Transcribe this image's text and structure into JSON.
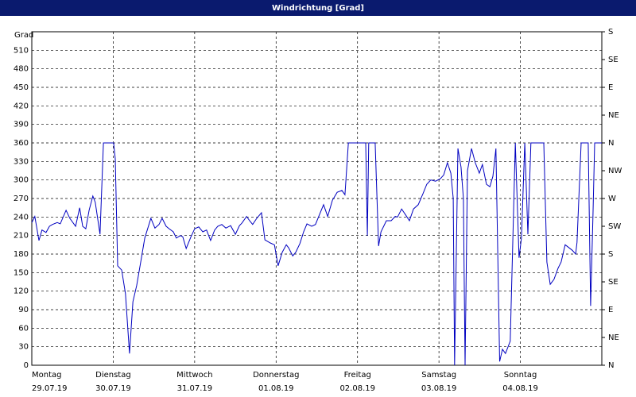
{
  "chart_data": {
    "type": "line",
    "title": "Windrichtung [Grad]",
    "ylabel": "Grad",
    "color": "#0000c0",
    "x": [
      0,
      0.9,
      2.1,
      3.0,
      4.2,
      5.2,
      6.1,
      7.5,
      8.4,
      10.1,
      11.2,
      12.9,
      14.1,
      15.0,
      15.9,
      16.9,
      18.0,
      18.7,
      20.1,
      21.1,
      24.1,
      24.6,
      25.3,
      26.5,
      27.6,
      28.8,
      29.8,
      30.9,
      32.1,
      33.3,
      35.1,
      36.3,
      37.5,
      38.4,
      39.6,
      40.5,
      41.7,
      42.6,
      43.8,
      44.5,
      45.5,
      46.9,
      48.0,
      49.2,
      50.4,
      51.5,
      52.7,
      53.9,
      54.8,
      56.0,
      57.2,
      58.6,
      60.0,
      61.2,
      61.9,
      63.3,
      64.2,
      65.1,
      66.3,
      67.7,
      68.7,
      70.3,
      71.5,
      72.6,
      73.8,
      75.0,
      75.7,
      76.9,
      77.8,
      79.0,
      80.1,
      81.1,
      82.5,
      83.6,
      84.8,
      86.0,
      87.2,
      88.6,
      90.0,
      91.4,
      92.3,
      93.3,
      96.1,
      98.4,
      98.9,
      99.3,
      100.3,
      101.2,
      102.2,
      102.9,
      104.5,
      105.9,
      107.1,
      107.8,
      109.0,
      110.1,
      111.3,
      112.5,
      113.9,
      115.3,
      116.4,
      117.6,
      119.0,
      120.4,
      121.4,
      122.5,
      123.5,
      124.2,
      124.6,
      125.6,
      126.5,
      127.2,
      127.7,
      128.4,
      129.6,
      130.7,
      131.9,
      132.8,
      134.0,
      135.0,
      135.9,
      136.8,
      137.9,
      138.7,
      139.6,
      141.0,
      142.5,
      143.6,
      144.3,
      145.3,
      146.2,
      147.1,
      150.9,
      151.8,
      152.8,
      153.9,
      155.1,
      156.0,
      157.2,
      158.4,
      159.3,
      160.3,
      160.7,
      161.9,
      164.0,
      164.7,
      165.4,
      165.9,
      168.0
    ],
    "values": [
      231,
      241,
      202,
      219,
      215,
      225,
      228,
      231,
      229,
      251,
      238,
      225,
      255,
      225,
      221,
      251,
      274,
      264,
      212,
      360,
      360,
      334,
      161,
      154,
      116,
      19,
      103,
      129,
      167,
      206,
      238,
      222,
      228,
      238,
      225,
      221,
      216,
      206,
      210,
      208,
      189,
      208,
      221,
      224,
      216,
      219,
      202,
      219,
      225,
      228,
      222,
      226,
      212,
      226,
      230,
      241,
      234,
      228,
      238,
      247,
      203,
      198,
      195,
      161,
      183,
      195,
      190,
      177,
      183,
      197,
      216,
      229,
      225,
      228,
      244,
      260,
      241,
      267,
      280,
      283,
      276,
      360,
      360,
      360,
      210,
      360,
      360,
      360,
      193,
      216,
      234,
      234,
      241,
      240,
      253,
      244,
      234,
      253,
      260,
      278,
      293,
      300,
      298,
      302,
      308,
      328,
      311,
      270,
      0,
      351,
      321,
      270,
      0,
      315,
      351,
      328,
      311,
      325,
      293,
      289,
      306,
      351,
      6,
      26,
      19,
      39,
      360,
      174,
      206,
      360,
      212,
      360,
      360,
      167,
      131,
      139,
      157,
      167,
      195,
      190,
      186,
      180,
      199,
      360,
      360,
      96,
      244,
      360,
      360
    ],
    "xlim": [
      0,
      168
    ],
    "xticks": [
      {
        "value": 0,
        "label": "Montag"
      },
      {
        "value": 24,
        "label": "Dienstag"
      },
      {
        "value": 48,
        "label": "Mittwoch"
      },
      {
        "value": 72,
        "label": "Donnerstag"
      },
      {
        "value": 96,
        "label": "Freitag"
      },
      {
        "value": 120,
        "label": "Samstag"
      },
      {
        "value": 144,
        "label": "Sonntag"
      }
    ],
    "xtick_dates": [
      "29.07.19",
      "30.07.19",
      "31.07.19",
      "01.08.19",
      "02.08.19",
      "03.08.19",
      "04.08.19"
    ],
    "ylim": [
      0,
      540
    ],
    "yticks": [
      0,
      30,
      60,
      90,
      120,
      150,
      180,
      210,
      240,
      270,
      300,
      330,
      360,
      390,
      420,
      450,
      480,
      510
    ],
    "y2lim": [
      0,
      540
    ],
    "y2ticks": [
      {
        "value": 0,
        "label": "N"
      },
      {
        "value": 45,
        "label": "NE"
      },
      {
        "value": 90,
        "label": "E"
      },
      {
        "value": 135,
        "label": "SE"
      },
      {
        "value": 180,
        "label": "S"
      },
      {
        "value": 225,
        "label": "SW"
      },
      {
        "value": 270,
        "label": "W"
      },
      {
        "value": 315,
        "label": "NW"
      },
      {
        "value": 360,
        "label": "N"
      },
      {
        "value": 405,
        "label": "NE"
      },
      {
        "value": 450,
        "label": "E"
      },
      {
        "value": 495,
        "label": "SE"
      },
      {
        "value": 540,
        "label": "S"
      }
    ],
    "grid": true
  }
}
